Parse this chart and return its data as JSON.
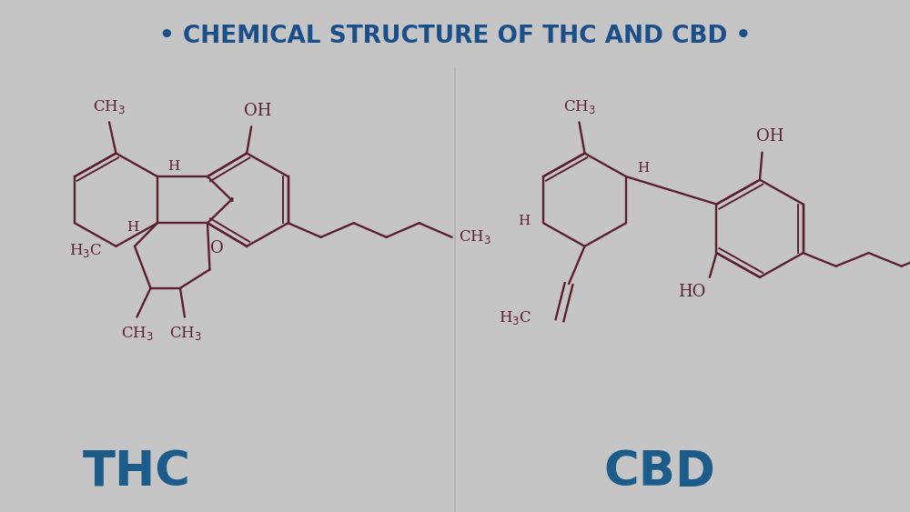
{
  "title": "• CHEMICAL STRUCTURE OF THC AND CBD •",
  "title_color": "#1b4f8a",
  "title_bg_color": "#c5c5c5",
  "left_bg_color": "#d2d2d2",
  "right_bg_color": "#cacaca",
  "molecule_color": "#5c1f2e",
  "thc_label": "THC",
  "cbd_label": "CBD",
  "label_color": "#1b5c8a",
  "title_fontsize": 19,
  "label_fontsize": 38,
  "mol_fontsize": 13
}
